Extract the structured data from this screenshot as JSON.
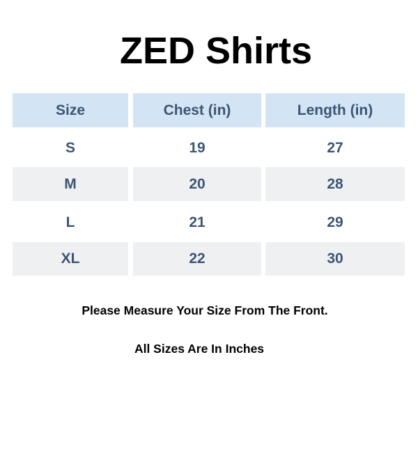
{
  "title": "ZED Shirts",
  "table": {
    "headers": [
      "Size",
      "Chest (in)",
      "Length (in)"
    ],
    "rows": [
      [
        "S",
        "19",
        "27"
      ],
      [
        "M",
        "20",
        "28"
      ],
      [
        "L",
        "21",
        "29"
      ],
      [
        "XL",
        "22",
        "30"
      ]
    ]
  },
  "notes": [
    "Please Measure Your Size From The Front.",
    "All Sizes Are In Inches"
  ],
  "colors": {
    "header_bg": "#d3e5f5",
    "stripe_bg": "#eff0f2",
    "cell_text": "#3d5573"
  }
}
